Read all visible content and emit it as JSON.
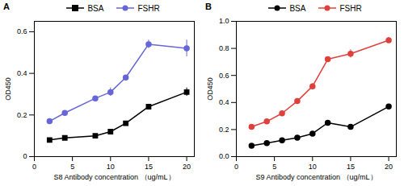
{
  "chart_data": [
    {
      "type": "line",
      "title": "A",
      "x_label": "S8 Antibody concentration （ug/mL）",
      "y_label": "OD450",
      "x": [
        2,
        4,
        8,
        10,
        12,
        15,
        20
      ],
      "series": [
        {
          "name": "BSA",
          "color": "#000000",
          "marker": "square",
          "values": [
            0.08,
            0.09,
            0.1,
            0.12,
            0.16,
            0.24,
            0.31
          ],
          "errors": [
            0.005,
            0.005,
            0.005,
            0.005,
            0.01,
            0.01,
            0.02
          ]
        },
        {
          "name": "FSHR",
          "color": "#6666d8",
          "marker": "circle",
          "values": [
            0.17,
            0.21,
            0.28,
            0.31,
            0.38,
            0.54,
            0.52
          ],
          "errors": [
            0.005,
            0.005,
            0.01,
            0.02,
            0.01,
            0.02,
            0.04
          ]
        }
      ],
      "xlim": [
        0,
        21
      ],
      "ylim": [
        0,
        0.65
      ],
      "xticks": [
        0,
        5,
        10,
        15,
        20
      ],
      "yticks": [
        0,
        0.2,
        0.4,
        0.6
      ],
      "legend": "top"
    },
    {
      "type": "line",
      "title": "B",
      "x_label": "S9 Antibody concentration （ug/mL）",
      "y_label": "OD450",
      "x": [
        2,
        4,
        6,
        8,
        10,
        12,
        15,
        20
      ],
      "series": [
        {
          "name": "BSA",
          "color": "#000000",
          "marker": "circle",
          "values": [
            0.08,
            0.1,
            0.12,
            0.14,
            0.17,
            0.25,
            0.22,
            0.37
          ],
          "errors": [
            0.005,
            0.005,
            0.005,
            0.005,
            0.005,
            0.01,
            0.005,
            0.01
          ]
        },
        {
          "name": "FSHR",
          "color": "#e0403c",
          "marker": "circle",
          "values": [
            0.22,
            0.26,
            0.32,
            0.41,
            0.52,
            0.72,
            0.76,
            0.86
          ],
          "errors": [
            0.01,
            0.01,
            0.01,
            0.02,
            0.02,
            0.01,
            0.03,
            0.02
          ]
        }
      ],
      "xlim": [
        0,
        21
      ],
      "ylim": [
        0,
        1.0
      ],
      "xticks": [
        0,
        5,
        10,
        15,
        20
      ],
      "yticks": [
        {
          "value": 0,
          "label": "0.0"
        },
        0.2,
        0.4,
        0.6,
        0.8,
        {
          "value": 1.0,
          "label": "1.0"
        }
      ],
      "legend": "top"
    }
  ]
}
